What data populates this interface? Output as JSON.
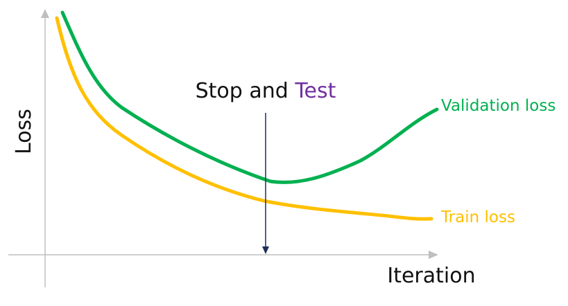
{
  "axes": {
    "x_label": "Iteration",
    "y_label": "Loss"
  },
  "annotation": {
    "prefix": "Stop and ",
    "highlight": "Test"
  },
  "series": [
    {
      "name": "Validation loss",
      "color": "#00b050"
    },
    {
      "name": "Train loss",
      "color": "#ffc000"
    }
  ],
  "colors": {
    "axis": "#bfbfbf",
    "annotation_highlight": "#7030a0",
    "stop_arrow": "#1f2d5a",
    "text": "#111111"
  }
}
